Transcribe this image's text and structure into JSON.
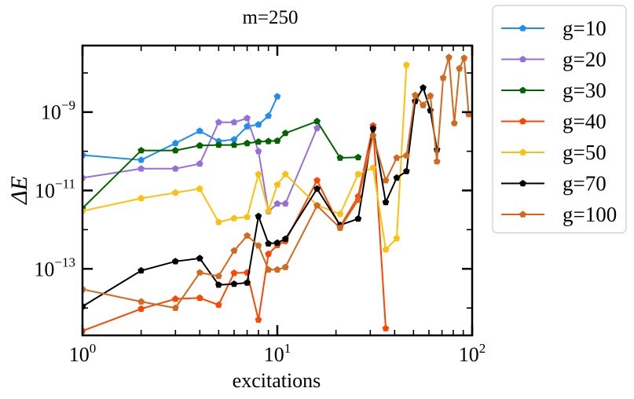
{
  "chart_data": {
    "type": "line",
    "title": "m=250",
    "xlabel": "excitations",
    "ylabel": "ΔE",
    "xscale": "log",
    "yscale": "log",
    "xlim": [
      1,
      100
    ],
    "ylim": [
      2e-15,
      5e-08
    ],
    "grid": false,
    "legend_position": "outside-right",
    "x_ticks": [
      {
        "base": "10",
        "exp": "0",
        "value": 1
      },
      {
        "base": "10",
        "exp": "1",
        "value": 10
      },
      {
        "base": "10",
        "exp": "2",
        "value": 100
      }
    ],
    "y_ticks": [
      {
        "base": "10",
        "exp": "−13",
        "value": 1e-13
      },
      {
        "base": "10",
        "exp": "−11",
        "value": 1e-11
      },
      {
        "base": "10",
        "exp": "−9",
        "value": 1e-09
      }
    ],
    "series": [
      {
        "name": "g=10",
        "color": "#1f8ef1",
        "x": [
          1,
          2,
          3,
          4,
          5,
          6,
          7,
          8,
          9,
          10
        ],
        "y": [
          8e-11,
          6e-11,
          1.6e-10,
          3.3e-10,
          1.8e-10,
          2e-10,
          4.3e-10,
          4.8e-10,
          8e-10,
          2.5e-09
        ]
      },
      {
        "name": "g=20",
        "color": "#9370db",
        "x": [
          1,
          2,
          3,
          4,
          5,
          6,
          7,
          8,
          9,
          10,
          11,
          16
        ],
        "y": [
          2.1e-11,
          3.6e-11,
          3.6e-11,
          4.8e-11,
          5.5e-10,
          5.5e-10,
          7e-10,
          1e-10,
          2.9e-12,
          4.6e-12,
          4.6e-12,
          3.9e-10
        ]
      },
      {
        "name": "g=30",
        "color": "#006400",
        "x": [
          1,
          2,
          3,
          4,
          5,
          6,
          7,
          8,
          9,
          10,
          11,
          16,
          21,
          26
        ],
        "y": [
          3.5e-12,
          1.05e-10,
          1.05e-10,
          1.4e-10,
          1.45e-10,
          1.45e-10,
          1.6e-10,
          1.75e-10,
          1.8e-10,
          1.85e-10,
          2.9e-10,
          5.8e-10,
          6.8e-11,
          7e-11
        ]
      },
      {
        "name": "g=40",
        "color": "#ff4500",
        "x": [
          1,
          2,
          3,
          4,
          5,
          6,
          7,
          8,
          9,
          10,
          11,
          16,
          21,
          26,
          31,
          36
        ],
        "y": [
          2.6e-15,
          9.5e-15,
          1.7e-14,
          1.8e-14,
          1.2e-14,
          7.8e-14,
          8e-14,
          5e-15,
          2.4e-13,
          4e-13,
          5.1e-13,
          1.8e-11,
          1.2e-12,
          7e-12,
          4.5e-10,
          3e-15
        ]
      },
      {
        "name": "g=50",
        "color": "#fdc010",
        "x": [
          1,
          2,
          3,
          4,
          5,
          6,
          7,
          8,
          9,
          10,
          11,
          16,
          21,
          26,
          31,
          36,
          41,
          46
        ],
        "y": [
          3e-12,
          6.3e-12,
          8.8e-12,
          1.1e-11,
          1.55e-12,
          1.95e-12,
          2.1e-12,
          2.6e-11,
          3e-12,
          1.4e-11,
          2.6e-11,
          4.2e-12,
          2.5e-12,
          2.6e-11,
          3.8e-11,
          3.1e-13,
          6e-13,
          1.6e-08
        ]
      },
      {
        "name": "g=70",
        "color": "#000000",
        "x": [
          1,
          2,
          3,
          4,
          5,
          6,
          7,
          8,
          9,
          10,
          11,
          16,
          21,
          26,
          31,
          36,
          41,
          46,
          51,
          56,
          61,
          66
        ],
        "y": [
          1.1e-14,
          9e-14,
          1.55e-13,
          1.85e-13,
          3.9e-14,
          4.1e-14,
          4.4e-14,
          2.2e-12,
          4.4e-13,
          4.6e-13,
          5.8e-13,
          1.1e-11,
          1.3e-12,
          1.9e-12,
          3.8e-10,
          5e-12,
          2.1e-11,
          3.1e-11,
          1.9e-09,
          4.2e-09,
          1.1e-09,
          1.1e-10
        ]
      },
      {
        "name": "g=100",
        "color": "#d2691e",
        "x": [
          1,
          2,
          3,
          4,
          5,
          6,
          7,
          8,
          9,
          10,
          11,
          16,
          21,
          26,
          31,
          36,
          41,
          46,
          51,
          56,
          61,
          66,
          71,
          76,
          81,
          86,
          91,
          96
        ],
        "y": [
          3e-14,
          1.45e-14,
          1e-14,
          8e-14,
          6.5e-14,
          2.9e-13,
          7e-13,
          3.9e-13,
          9.5e-14,
          9.5e-14,
          1.1e-13,
          4.1e-12,
          1.1e-12,
          5.7e-12,
          2.5e-10,
          1.8e-11,
          6.8e-11,
          7.8e-11,
          2.7e-09,
          1.5e-09,
          2.6e-09,
          5.5e-11,
          7.5e-09,
          2.5e-08,
          5.2e-10,
          1.3e-08,
          2.4e-08,
          8.8e-10
        ]
      }
    ]
  }
}
